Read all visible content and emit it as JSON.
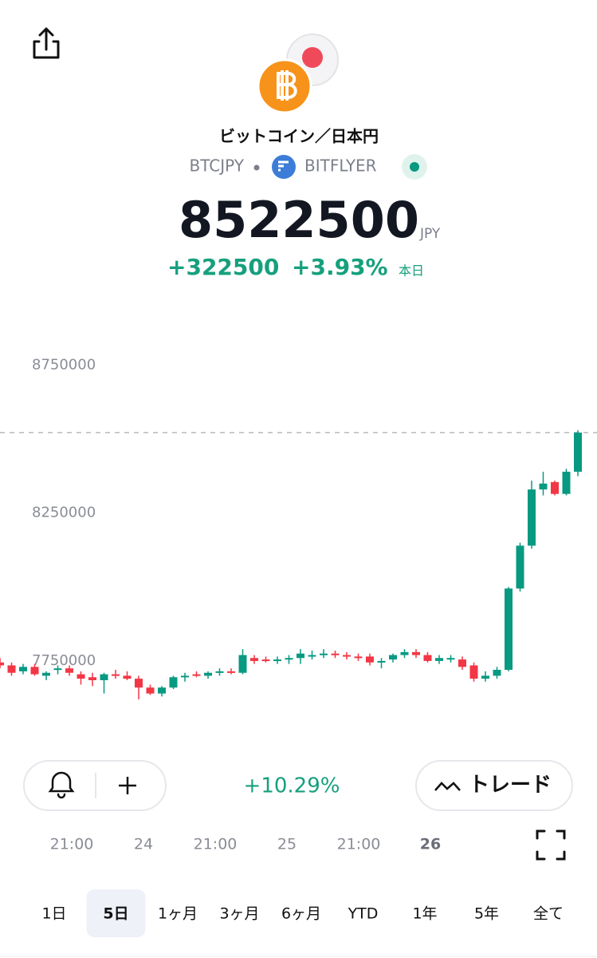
{
  "header": {
    "pair": "ビットコイン／日本円",
    "symbol": "BTCJPY",
    "exchange": "BITFLYER"
  },
  "quote": {
    "price": 8522500,
    "currency": "JPY",
    "change": "+322500",
    "change_percent": "+3.93%",
    "period": "本日"
  },
  "chart_data": {
    "type": "candlestick",
    "ylim": [
      7550000,
      8900000
    ],
    "yticks": [
      7750000,
      8250000,
      8750000
    ],
    "up_color": "#089981",
    "down_color": "#f23645",
    "open": [
      7745000,
      7735000,
      7715000,
      7730000,
      7700000,
      7720000,
      7725000,
      7705000,
      7695000,
      7685000,
      7705000,
      7700000,
      7690000,
      7660000,
      7640000,
      7660000,
      7695000,
      7705000,
      7700000,
      7710000,
      7715000,
      7710000,
      7760000,
      7755000,
      7750000,
      7755000,
      7760000,
      7765000,
      7770000,
      7775000,
      7770000,
      7765000,
      7765000,
      7745000,
      7755000,
      7770000,
      7780000,
      7770000,
      7750000,
      7755000,
      7755000,
      7735000,
      7690000,
      7700000,
      7720000,
      7995000,
      8140000,
      8330000,
      8355000,
      8315000,
      8390000
    ],
    "high": [
      7760000,
      7745000,
      7740000,
      7740000,
      7715000,
      7735000,
      7735000,
      7715000,
      7710000,
      7710000,
      7720000,
      7715000,
      7700000,
      7670000,
      7665000,
      7700000,
      7710000,
      7715000,
      7715000,
      7725000,
      7725000,
      7790000,
      7770000,
      7765000,
      7765000,
      7770000,
      7790000,
      7785000,
      7790000,
      7785000,
      7780000,
      7775000,
      7775000,
      7760000,
      7775000,
      7790000,
      7790000,
      7780000,
      7770000,
      7770000,
      7765000,
      7745000,
      7715000,
      7730000,
      8000000,
      8150000,
      8360000,
      8390000,
      8360000,
      8400000,
      8530000
    ],
    "low": [
      7725000,
      7700000,
      7705000,
      7700000,
      7685000,
      7705000,
      7700000,
      7670000,
      7665000,
      7640000,
      7690000,
      7685000,
      7620000,
      7635000,
      7630000,
      7655000,
      7680000,
      7695000,
      7690000,
      7700000,
      7705000,
      7705000,
      7740000,
      7745000,
      7740000,
      7740000,
      7740000,
      7755000,
      7760000,
      7760000,
      7755000,
      7750000,
      7735000,
      7725000,
      7745000,
      7760000,
      7760000,
      7745000,
      7740000,
      7745000,
      7720000,
      7680000,
      7680000,
      7690000,
      7715000,
      7985000,
      8130000,
      8310000,
      8310000,
      8310000,
      8375000
    ],
    "close": [
      7735000,
      7710000,
      7730000,
      7705000,
      7710000,
      7725000,
      7710000,
      7690000,
      7685000,
      7705000,
      7700000,
      7690000,
      7660000,
      7640000,
      7660000,
      7695000,
      7700000,
      7700000,
      7710000,
      7715000,
      7710000,
      7770000,
      7750000,
      7750000,
      7755000,
      7760000,
      7775000,
      7770000,
      7775000,
      7770000,
      7765000,
      7760000,
      7745000,
      7750000,
      7770000,
      7780000,
      7770000,
      7750000,
      7760000,
      7760000,
      7730000,
      7690000,
      7700000,
      7720000,
      7995000,
      8140000,
      8330000,
      8350000,
      8315000,
      8390000,
      8522500
    ]
  },
  "controls": {
    "range_change": "+10.29%",
    "trade": "トレード"
  },
  "x_labels": [
    "21:00",
    "24",
    "21:00",
    "25",
    "21:00",
    "26"
  ],
  "periods": [
    "1日",
    "5日",
    "1ヶ月",
    "3ヶ月",
    "6ヶ月",
    "YTD",
    "1年",
    "5年",
    "全て"
  ],
  "selected_period": 1
}
